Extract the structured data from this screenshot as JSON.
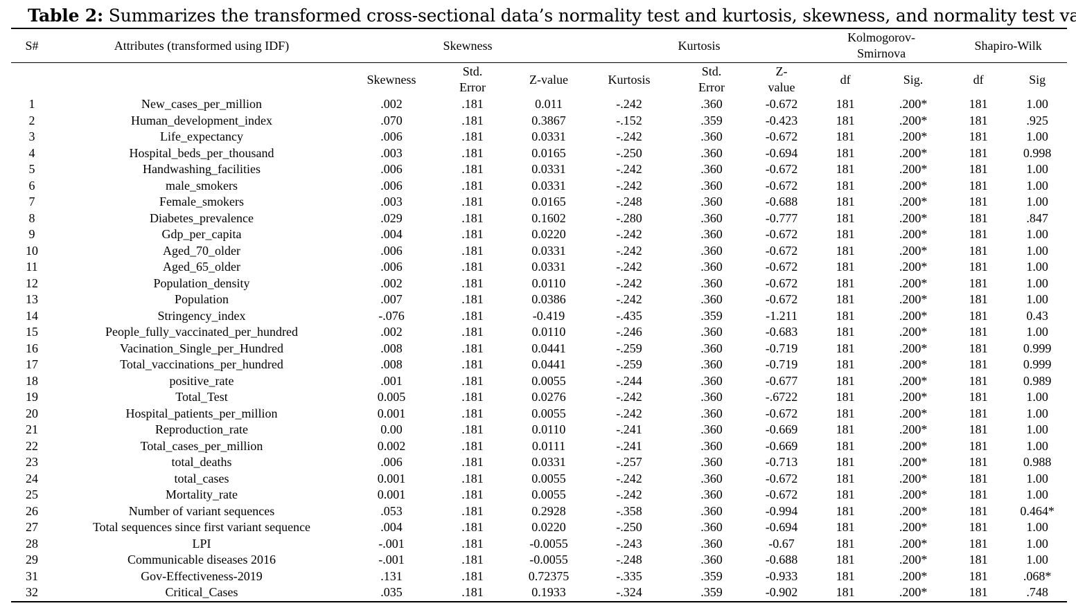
{
  "caption": {
    "label": "Table 2:",
    "text": "Summarizes the transformed cross-sectional data’s normality test and kurtosis, skewness, and normality test values"
  },
  "header": {
    "sno": "S#",
    "attributes": "Attributes (transformed using IDF)",
    "skewness_group": "Skewness",
    "kurtosis_group": "Kurtosis",
    "ks_group": "Kolmogorov-Smirnova",
    "sw_group": "Shapiro-Wilk",
    "sub": {
      "skewness": "Skewness",
      "skew_std_error": "Std. Error",
      "skew_z": "Z-value",
      "kurtosis": "Kurtosis",
      "kurt_std_error": "Std. Error",
      "kurt_z": "Z-value",
      "ks_df": "df",
      "ks_sig": "Sig.",
      "sw_df": "df",
      "sw_sig": "Sig"
    }
  },
  "rows": [
    [
      "1",
      "New_cases_per_million",
      ".002",
      ".181",
      "0.011",
      "-.242",
      ".360",
      "-0.672",
      "181",
      ".200*",
      "181",
      "1.00"
    ],
    [
      "2",
      "Human_development_index",
      ".070",
      ".181",
      "0.3867",
      "-.152",
      ".359",
      "-0.423",
      "181",
      ".200*",
      "181",
      ".925"
    ],
    [
      "3",
      "Life_expectancy",
      ".006",
      ".181",
      "0.0331",
      "-.242",
      ".360",
      "-0.672",
      "181",
      ".200*",
      "181",
      "1.00"
    ],
    [
      "4",
      "Hospital_beds_per_thousand",
      ".003",
      ".181",
      "0.0165",
      "-.250",
      ".360",
      "-0.694",
      "181",
      ".200*",
      "181",
      "0.998"
    ],
    [
      "5",
      "Handwashing_facilities",
      ".006",
      ".181",
      "0.0331",
      "-.242",
      ".360",
      "-0.672",
      "181",
      ".200*",
      "181",
      "1.00"
    ],
    [
      "6",
      "male_smokers",
      ".006",
      ".181",
      "0.0331",
      "-.242",
      ".360",
      "-0.672",
      "181",
      ".200*",
      "181",
      "1.00"
    ],
    [
      "7",
      "Female_smokers",
      ".003",
      ".181",
      "0.0165",
      "-.248",
      ".360",
      "-0.688",
      "181",
      ".200*",
      "181",
      "1.00"
    ],
    [
      "8",
      "Diabetes_prevalence",
      ".029",
      ".181",
      "0.1602",
      "-.280",
      ".360",
      "-0.777",
      "181",
      ".200*",
      "181",
      ".847"
    ],
    [
      "9",
      "Gdp_per_capita",
      ".004",
      ".181",
      "0.0220",
      "-.242",
      ".360",
      "-0.672",
      "181",
      ".200*",
      "181",
      "1.00"
    ],
    [
      "10",
      "Aged_70_older",
      ".006",
      ".181",
      "0.0331",
      "-.242",
      ".360",
      "-0.672",
      "181",
      ".200*",
      "181",
      "1.00"
    ],
    [
      "11",
      "Aged_65_older",
      ".006",
      ".181",
      "0.0331",
      "-.242",
      ".360",
      "-0.672",
      "181",
      ".200*",
      "181",
      "1.00"
    ],
    [
      "12",
      "Population_density",
      ".002",
      ".181",
      "0.0110",
      "-.242",
      ".360",
      "-0.672",
      "181",
      ".200*",
      "181",
      "1.00"
    ],
    [
      "13",
      "Population",
      ".007",
      ".181",
      "0.0386",
      "-.242",
      ".360",
      "-0.672",
      "181",
      ".200*",
      "181",
      "1.00"
    ],
    [
      "14",
      "Stringency_index",
      "-.076",
      ".181",
      "-0.419",
      "-.435",
      ".359",
      "-1.211",
      "181",
      ".200*",
      "181",
      "0.43"
    ],
    [
      "15",
      "People_fully_vaccinated_per_hundred",
      ".002",
      ".181",
      "0.0110",
      "-.246",
      ".360",
      "-0.683",
      "181",
      ".200*",
      "181",
      "1.00"
    ],
    [
      "16",
      "Vacination_Single_per_Hundred",
      ".008",
      ".181",
      "0.0441",
      "-.259",
      ".360",
      "-0.719",
      "181",
      ".200*",
      "181",
      "0.999"
    ],
    [
      "17",
      "Total_vaccinations_per_hundred",
      ".008",
      ".181",
      "0.0441",
      "-.259",
      ".360",
      "-0.719",
      "181",
      ".200*",
      "181",
      "0.999"
    ],
    [
      "18",
      "positive_rate",
      ".001",
      ".181",
      "0.0055",
      "-.244",
      ".360",
      "-0.677",
      "181",
      ".200*",
      "181",
      "0.989"
    ],
    [
      "19",
      "Total_Test",
      "0.005",
      ".181",
      "0.0276",
      "-.242",
      ".360",
      "-.6722",
      "181",
      ".200*",
      "181",
      "1.00"
    ],
    [
      "20",
      "Hospital_patients_per_million",
      "0.001",
      ".181",
      "0.0055",
      "-.242",
      ".360",
      "-0.672",
      "181",
      ".200*",
      "181",
      "1.00"
    ],
    [
      "21",
      "Reproduction_rate",
      "0.00",
      ".181",
      "0.0110",
      "-.241",
      ".360",
      "-0.669",
      "181",
      ".200*",
      "181",
      "1.00"
    ],
    [
      "22",
      "Total_cases_per_million",
      "0.002",
      ".181",
      "0.0111",
      "-.241",
      ".360",
      "-0.669",
      "181",
      ".200*",
      "181",
      "1.00"
    ],
    [
      "23",
      "total_deaths",
      ".006",
      ".181",
      "0.0331",
      "-.257",
      ".360",
      "-0.713",
      "181",
      ".200*",
      "181",
      "0.988"
    ],
    [
      "24",
      "total_cases",
      "0.001",
      ".181",
      "0.0055",
      "-.242",
      ".360",
      "-0.672",
      "181",
      ".200*",
      "181",
      "1.00"
    ],
    [
      "25",
      "Mortality_rate",
      "0.001",
      ".181",
      "0.0055",
      "-.242",
      ".360",
      "-0.672",
      "181",
      ".200*",
      "181",
      "1.00"
    ],
    [
      "26",
      "Number of variant sequences",
      ".053",
      ".181",
      "0.2928",
      "-.358",
      ".360",
      "-0.994",
      "181",
      ".200*",
      "181",
      "0.464*"
    ],
    [
      "27",
      "Total sequences since first variant sequence",
      ".004",
      ".181",
      "0.0220",
      "-.250",
      ".360",
      "-0.694",
      "181",
      ".200*",
      "181",
      "1.00"
    ],
    [
      "28",
      "LPI",
      "-.001",
      ".181",
      "-0.0055",
      "-.243",
      ".360",
      "-0.67",
      "181",
      ".200*",
      "181",
      "1.00"
    ],
    [
      "29",
      "Communicable diseases 2016",
      "-.001",
      ".181",
      "-0.0055",
      "-.248",
      ".360",
      "-0.688",
      "181",
      ".200*",
      "181",
      "1.00"
    ],
    [
      "31",
      "Gov-Effectiveness-2019",
      ".131",
      ".181",
      "0.72375",
      "-.335",
      ".359",
      "-0.933",
      "181",
      ".200*",
      "181",
      ".068*"
    ],
    [
      "32",
      "Critical_Cases",
      ".035",
      ".181",
      "0.1933",
      "-.324",
      ".359",
      "-0.902",
      "181",
      ".200*",
      "181",
      ".748"
    ]
  ]
}
